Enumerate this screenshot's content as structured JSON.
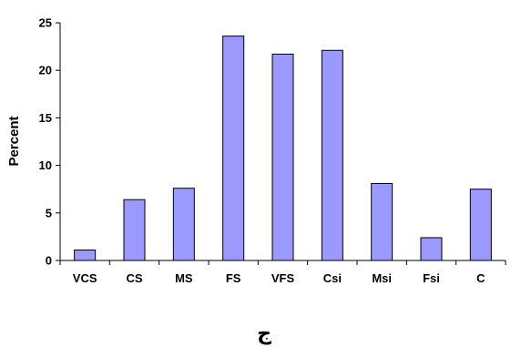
{
  "chart_data": {
    "type": "bar",
    "title": "",
    "xlabel": "",
    "ylabel": "Percent",
    "categories": [
      "VCS",
      "CS",
      "MS",
      "FS",
      "VFS",
      "Csi",
      "Msi",
      "Fsi",
      "C"
    ],
    "values": [
      1.1,
      6.4,
      7.6,
      23.6,
      21.7,
      22.1,
      8.1,
      2.4,
      7.5
    ],
    "ylim": [
      0,
      25
    ],
    "yticks": [
      0,
      5,
      10,
      15,
      20,
      25
    ],
    "grid": false,
    "legend": "none",
    "colors": {
      "bar_fill": "#9999ff",
      "bar_stroke": "#000000",
      "axis": "#000000"
    }
  },
  "caption": "ج"
}
